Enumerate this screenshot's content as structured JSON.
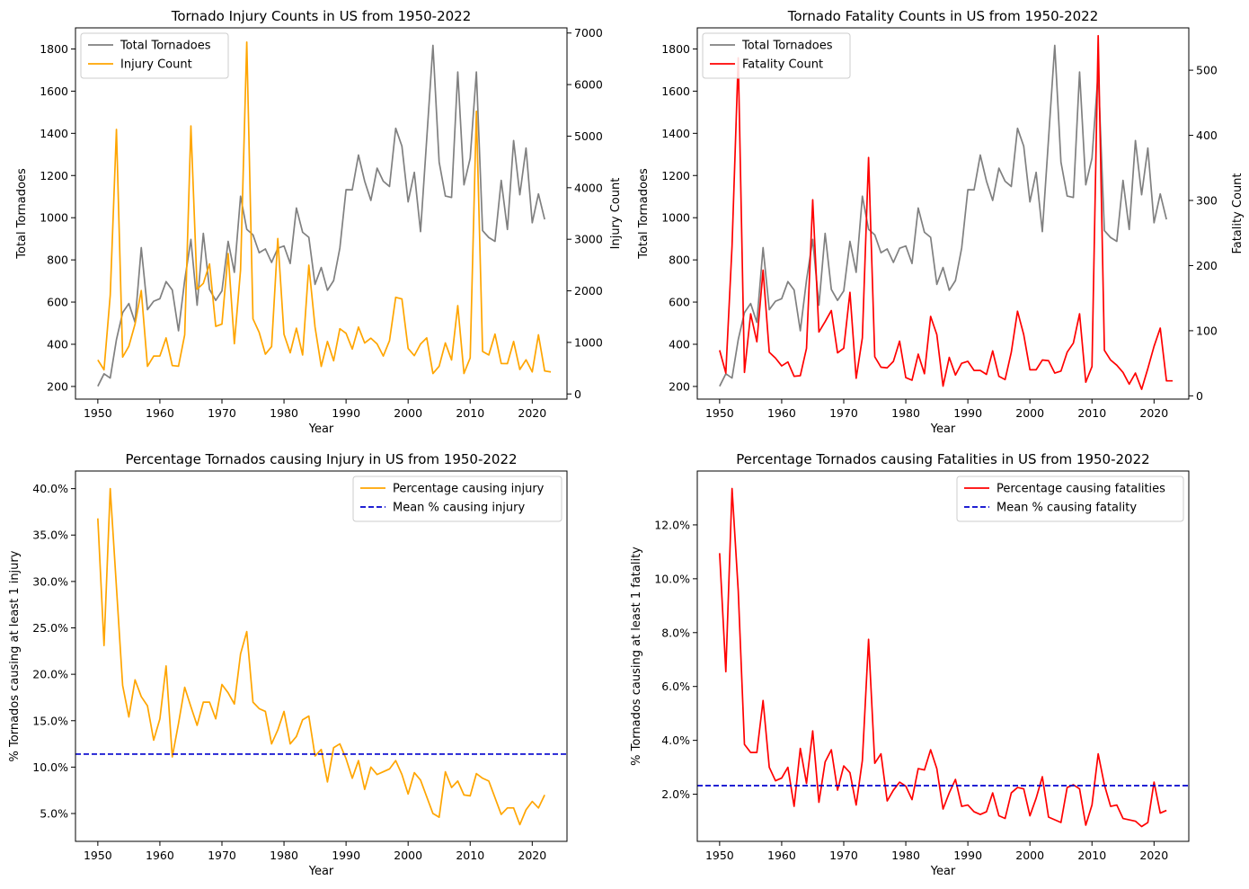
{
  "chart_data": [
    {
      "type": "line",
      "title": "Tornado Injury Counts in US from 1950-2022",
      "xlabel": "Year",
      "ylabel": "Total Tornadoes",
      "ylabel_right": "Injury Count",
      "xlim": [
        1946.4,
        2025.6
      ],
      "ylim": [
        140,
        1900
      ],
      "ylim_right": [
        -100,
        7100
      ],
      "xticks": [
        1950,
        1960,
        1970,
        1980,
        1990,
        2000,
        2010,
        2020
      ],
      "yticks": [
        200,
        400,
        600,
        800,
        1000,
        1200,
        1400,
        1600,
        1800
      ],
      "yticks_right": [
        0,
        1000,
        2000,
        3000,
        4000,
        5000,
        6000,
        7000
      ],
      "legend_position": "upper left",
      "series": [
        {
          "name": "Total Tornadoes",
          "axis": "left",
          "color": "#808080",
          "values": [
            201,
            260,
            240,
            422,
            550,
            593,
            504,
            858,
            564,
            604,
            616,
            697,
            657,
            464,
            704,
            897,
            585,
            926,
            660,
            608,
            653,
            888,
            741,
            1102,
            945,
            919,
            834,
            852,
            788,
            855,
            866,
            783,
            1046,
            931,
            907,
            684,
            764,
            656,
            702,
            856,
            1133,
            1132,
            1297,
            1173,
            1082,
            1235,
            1173,
            1148,
            1424,
            1339,
            1075,
            1215,
            934,
            1374,
            1817,
            1264,
            1103,
            1096,
            1691,
            1156,
            1282,
            1691,
            939,
            906,
            888,
            1177,
            944,
            1366,
            1109,
            1330,
            976,
            1113,
            992
          ]
        },
        {
          "name": "Injury Count",
          "axis": "right",
          "color": "#FFA500",
          "values": [
            659,
            469,
            1915,
            5131,
            715,
            926,
            1355,
            2005,
            535,
            734,
            737,
            1087,
            551,
            538,
            1148,
            5197,
            2030,
            2144,
            2522,
            1311,
            1355,
            2723,
            975,
            2406,
            6824,
            1457,
            1195,
            771,
            919,
            3014,
            1157,
            798,
            1276,
            756,
            2499,
            1299,
            534,
            1018,
            643,
            1265,
            1176,
            870,
            1297,
            988,
            1082,
            970,
            735,
            1033,
            1874,
            1842,
            882,
            743,
            968,
            1087,
            396,
            537,
            990,
            659,
            1714,
            397,
            699,
            5483,
            824,
            756,
            1161,
            591,
            589,
            1018,
            475,
            662,
            427,
            1147,
            446,
            427
          ]
        }
      ]
    },
    {
      "type": "line",
      "title": "Tornado Fatality Counts in US from 1950-2022",
      "xlabel": "Year",
      "ylabel": "Total Tornadoes",
      "ylabel_right": "Fatality Count",
      "xlim": [
        1946.4,
        2025.6
      ],
      "ylim": [
        140,
        1900
      ],
      "ylim_right": [
        -5,
        565
      ],
      "xticks": [
        1950,
        1960,
        1970,
        1980,
        1990,
        2000,
        2010,
        2020
      ],
      "yticks": [
        200,
        400,
        600,
        800,
        1000,
        1200,
        1400,
        1600,
        1800
      ],
      "yticks_right": [
        0,
        100,
        200,
        300,
        400,
        500
      ],
      "legend_position": "upper left",
      "series": [
        {
          "name": "Total Tornadoes",
          "axis": "left",
          "color": "#808080",
          "values": [
            201,
            260,
            240,
            422,
            550,
            593,
            504,
            858,
            564,
            604,
            616,
            697,
            657,
            464,
            704,
            897,
            585,
            926,
            660,
            608,
            653,
            888,
            741,
            1102,
            945,
            919,
            834,
            852,
            788,
            855,
            866,
            783,
            1046,
            931,
            907,
            684,
            764,
            656,
            702,
            856,
            1133,
            1132,
            1297,
            1173,
            1082,
            1235,
            1173,
            1148,
            1424,
            1339,
            1075,
            1215,
            934,
            1374,
            1817,
            1264,
            1103,
            1096,
            1691,
            1156,
            1282,
            1691,
            939,
            906,
            888,
            1177,
            944,
            1366,
            1109,
            1330,
            976,
            1113,
            992
          ]
        },
        {
          "name": "Fatality Count",
          "axis": "right",
          "color": "#FF0000",
          "values": [
            70,
            35,
            230,
            519,
            36,
            126,
            83,
            193,
            67,
            58,
            46,
            52,
            30,
            31,
            73,
            301,
            98,
            114,
            131,
            66,
            73,
            159,
            27,
            89,
            366,
            60,
            44,
            43,
            53,
            84,
            28,
            24,
            64,
            34,
            122,
            94,
            15,
            59,
            32,
            50,
            53,
            39,
            39,
            33,
            69,
            30,
            25,
            67,
            130,
            94,
            40,
            40,
            55,
            54,
            35,
            38,
            67,
            81,
            126,
            21,
            45,
            553,
            70,
            55,
            47,
            36,
            18,
            35,
            10,
            42,
            76,
            104,
            23,
            23
          ]
        }
      ]
    },
    {
      "type": "line",
      "title": "Percentage Tornados causing Injury in US from 1950-2022",
      "xlabel": "Year",
      "ylabel": "% Tornados causing at least 1 injury",
      "xlim": [
        1946.4,
        2025.6
      ],
      "ylim": [
        2.0,
        41.9
      ],
      "xticks": [
        1950,
        1960,
        1970,
        1980,
        1990,
        2000,
        2010,
        2020
      ],
      "yticks": [
        5.0,
        10.0,
        15.0,
        20.0,
        25.0,
        30.0,
        35.0,
        40.0
      ],
      "ytick_suffix": "%",
      "legend_position": "upper right",
      "series": [
        {
          "name": "Percentage causing injury",
          "color": "#FFA500",
          "style": "solid",
          "values": [
            36.8,
            23.1,
            40.0,
            29.4,
            18.8,
            15.4,
            19.4,
            17.6,
            16.6,
            12.9,
            15.2,
            20.9,
            11.1,
            14.7,
            18.6,
            16.5,
            14.5,
            17.0,
            17.0,
            15.2,
            18.9,
            18.0,
            16.8,
            22.2,
            24.6,
            17.0,
            16.3,
            16.0,
            12.5,
            14.0,
            16.0,
            12.5,
            13.3,
            15.1,
            15.5,
            11.2,
            11.9,
            8.4,
            12.1,
            12.5,
            10.9,
            8.8,
            10.7,
            7.6,
            10.0,
            9.2,
            9.5,
            9.8,
            10.7,
            9.2,
            7.1,
            9.4,
            8.6,
            6.8,
            5.0,
            4.6,
            9.5,
            7.8,
            8.5,
            7.0,
            6.9,
            9.3,
            8.8,
            8.5,
            6.7,
            4.9,
            5.6,
            5.6,
            3.8,
            5.4,
            6.3,
            5.6,
            7.0
          ]
        },
        {
          "name": "Mean % causing injury",
          "color": "#0000CD",
          "style": "dashed",
          "value": 11.4
        }
      ]
    },
    {
      "type": "line",
      "title": "Percentage Tornados causing Fatalities in US from 1950-2022",
      "xlabel": "Year",
      "ylabel": "% Tornados causing at least 1 fatality",
      "xlim": [
        1946.4,
        2025.6
      ],
      "ylim": [
        0.25,
        14.0
      ],
      "xticks": [
        1950,
        1960,
        1970,
        1980,
        1990,
        2000,
        2010,
        2020
      ],
      "yticks": [
        2.0,
        4.0,
        6.0,
        8.0,
        10.0,
        12.0
      ],
      "ytick_suffix": "%",
      "legend_position": "upper right",
      "series": [
        {
          "name": "Percentage causing fatalities",
          "color": "#FF0000",
          "style": "solid",
          "values": [
            10.95,
            6.55,
            13.35,
            9.55,
            3.85,
            3.55,
            3.55,
            5.48,
            3.0,
            2.5,
            2.6,
            3.0,
            1.55,
            3.7,
            2.4,
            4.35,
            1.7,
            3.2,
            3.65,
            2.15,
            3.05,
            2.8,
            1.6,
            3.25,
            7.75,
            3.15,
            3.5,
            1.75,
            2.15,
            2.45,
            2.3,
            1.8,
            2.95,
            2.9,
            3.65,
            2.95,
            1.45,
            2.05,
            2.55,
            1.55,
            1.6,
            1.35,
            1.25,
            1.35,
            2.05,
            1.2,
            1.1,
            2.05,
            2.25,
            2.2,
            1.2,
            1.85,
            2.65,
            1.15,
            1.05,
            0.95,
            2.25,
            2.35,
            2.2,
            0.85,
            1.6,
            3.5,
            2.35,
            1.55,
            1.6,
            1.1,
            1.05,
            1.0,
            0.8,
            0.95,
            2.45,
            1.3,
            1.4
          ]
        },
        {
          "name": "Mean % causing fatality",
          "color": "#0000CD",
          "style": "dashed",
          "value": 2.32
        }
      ]
    }
  ]
}
